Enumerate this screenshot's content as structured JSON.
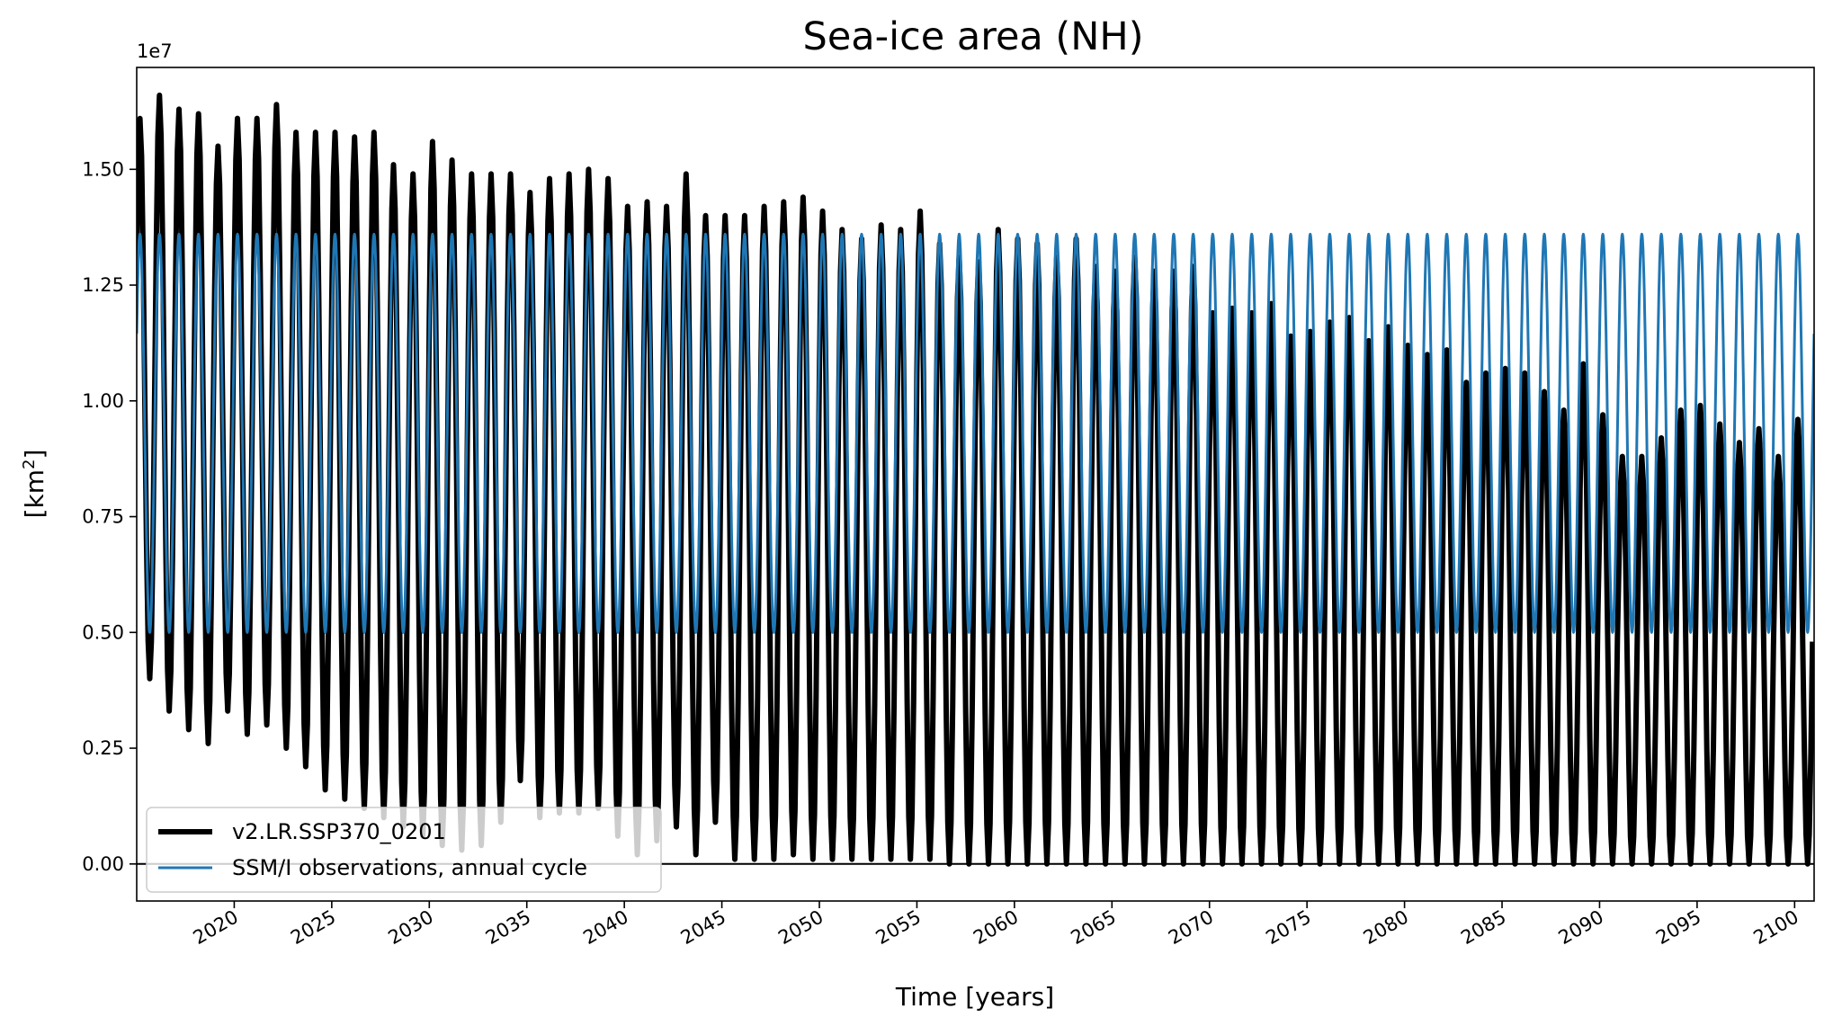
{
  "chart_data": {
    "type": "line",
    "title": "Sea-ice area (NH)",
    "xlabel": "Time [years]",
    "ylabel": "[km",
    "ylabel_sup": "2",
    "ylabel_tail": "]",
    "y_offset_label": "1e7",
    "xlim": [
      2015,
      2101
    ],
    "ylim": [
      -0.08,
      1.72
    ],
    "y_scale_factor": 10000000,
    "x_ticks": [
      2020,
      2025,
      2030,
      2035,
      2040,
      2045,
      2050,
      2055,
      2060,
      2065,
      2070,
      2075,
      2080,
      2085,
      2090,
      2095,
      2100
    ],
    "x_tick_labels": [
      "2020",
      "2025",
      "2030",
      "2035",
      "2040",
      "2045",
      "2050",
      "2055",
      "2060",
      "2065",
      "2070",
      "2075",
      "2080",
      "2085",
      "2090",
      "2095",
      "2100"
    ],
    "y_ticks": [
      0.0,
      0.25,
      0.5,
      0.75,
      1.0,
      1.25,
      1.5
    ],
    "y_tick_labels": [
      "0.00",
      "0.25",
      "0.50",
      "0.75",
      "1.00",
      "1.25",
      "1.50"
    ],
    "legend_position": "lower-left",
    "grid": false,
    "series": [
      {
        "name": "v2.LR.SSP370_0201",
        "color": "#000000",
        "style": "thick",
        "description": "monthly model sea-ice area; per-year maximum (March) and minimum (September), units 1e7 km2",
        "years": [
          2015,
          2016,
          2017,
          2018,
          2019,
          2020,
          2021,
          2022,
          2023,
          2024,
          2025,
          2026,
          2027,
          2028,
          2029,
          2030,
          2031,
          2032,
          2033,
          2034,
          2035,
          2036,
          2037,
          2038,
          2039,
          2040,
          2041,
          2042,
          2043,
          2044,
          2045,
          2046,
          2047,
          2048,
          2049,
          2050,
          2051,
          2052,
          2053,
          2054,
          2055,
          2056,
          2057,
          2058,
          2059,
          2060,
          2061,
          2062,
          2063,
          2064,
          2065,
          2066,
          2067,
          2068,
          2069,
          2070,
          2071,
          2072,
          2073,
          2074,
          2075,
          2076,
          2077,
          2078,
          2079,
          2080,
          2081,
          2082,
          2083,
          2084,
          2085,
          2086,
          2087,
          2088,
          2089,
          2090,
          2091,
          2092,
          2093,
          2094,
          2095,
          2096,
          2097,
          2098,
          2099,
          2100
        ],
        "annual_max": [
          1.61,
          1.66,
          1.63,
          1.62,
          1.55,
          1.61,
          1.61,
          1.64,
          1.58,
          1.58,
          1.58,
          1.57,
          1.58,
          1.51,
          1.49,
          1.56,
          1.52,
          1.49,
          1.49,
          1.49,
          1.45,
          1.48,
          1.49,
          1.5,
          1.48,
          1.42,
          1.43,
          1.42,
          1.49,
          1.4,
          1.4,
          1.4,
          1.42,
          1.43,
          1.44,
          1.41,
          1.37,
          1.35,
          1.38,
          1.37,
          1.41,
          1.34,
          1.31,
          1.3,
          1.37,
          1.35,
          1.34,
          1.31,
          1.35,
          1.29,
          1.28,
          1.31,
          1.28,
          1.28,
          1.29,
          1.19,
          1.2,
          1.19,
          1.21,
          1.14,
          1.15,
          1.17,
          1.18,
          1.13,
          1.16,
          1.12,
          1.1,
          1.11,
          1.04,
          1.06,
          1.07,
          1.06,
          1.02,
          0.98,
          1.08,
          0.97,
          0.88,
          0.88,
          0.92,
          0.98,
          0.99,
          0.95,
          0.91,
          0.94,
          0.88,
          0.96
        ],
        "annual_min": [
          0.4,
          0.33,
          0.29,
          0.26,
          0.33,
          0.28,
          0.3,
          0.25,
          0.21,
          0.16,
          0.14,
          0.12,
          0.1,
          0.08,
          0.06,
          0.04,
          0.03,
          0.04,
          0.09,
          0.18,
          0.1,
          0.11,
          0.11,
          0.12,
          0.06,
          0.02,
          0.05,
          0.08,
          0.02,
          0.09,
          0.01,
          0.01,
          0.01,
          0.02,
          0.01,
          0.01,
          0.01,
          0.01,
          0.01,
          0.01,
          0.01,
          0.0,
          0.0,
          0.0,
          0.0,
          0.0,
          0.0,
          0.0,
          0.0,
          0.0,
          0.0,
          0.0,
          0.0,
          0.0,
          0.0,
          0.0,
          0.0,
          0.0,
          0.0,
          0.0,
          0.0,
          0.0,
          0.0,
          0.0,
          0.0,
          0.0,
          0.0,
          0.0,
          0.0,
          0.0,
          0.0,
          0.0,
          0.0,
          0.0,
          0.0,
          0.0,
          0.0,
          0.0,
          0.0,
          0.0,
          0.0,
          0.0,
          0.0,
          0.0,
          0.0,
          0.0
        ]
      },
      {
        "name": "SSM/I observations, annual cycle",
        "color": "#1f77b4",
        "style": "thin",
        "description": "repeating climatological annual cycle, units 1e7 km2",
        "annual_max": 1.36,
        "annual_min": 0.5
      }
    ]
  }
}
